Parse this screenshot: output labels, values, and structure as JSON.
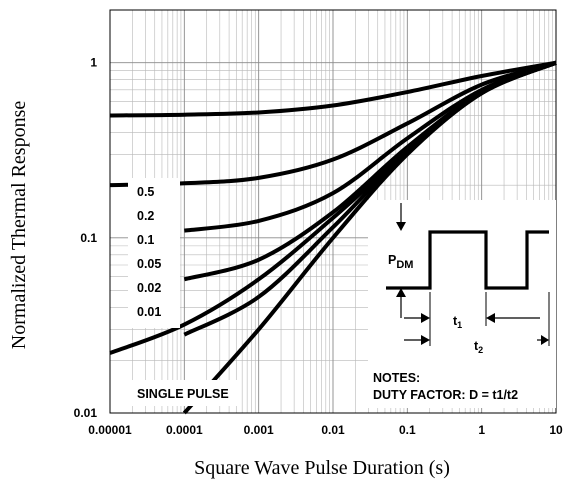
{
  "chart_data": {
    "type": "line",
    "title": "",
    "xlabel": "Square Wave Pulse Duration (s)",
    "ylabel": "Normalized Thermal Response",
    "xscale": "log",
    "yscale": "log",
    "xlim": [
      1e-05,
      10
    ],
    "ylim": [
      0.01,
      2
    ],
    "grid": true,
    "x_tick_labels": [
      "0.00001",
      "0.0001",
      "0.001",
      "0.01",
      "0.1",
      "1",
      "10"
    ],
    "x_tick_values": [
      1e-05,
      0.0001,
      0.001,
      0.01,
      0.1,
      1,
      10
    ],
    "y_tick_labels": [
      "0.01",
      "0.1",
      "1"
    ],
    "y_tick_values": [
      0.01,
      0.1,
      1
    ],
    "legend_labels": [
      "0.5",
      "0.2",
      "0.1",
      "0.05",
      "0.02",
      "0.01"
    ],
    "series": [
      {
        "name": "0.5",
        "x": [
          1e-05,
          0.0001,
          0.001,
          0.01,
          0.1,
          1,
          10
        ],
        "y": [
          0.5,
          0.505,
          0.52,
          0.57,
          0.68,
          0.84,
          1.0
        ]
      },
      {
        "name": "0.2",
        "x": [
          1e-05,
          0.0001,
          0.001,
          0.01,
          0.1,
          1,
          10
        ],
        "y": [
          0.2,
          0.205,
          0.22,
          0.28,
          0.45,
          0.75,
          1.0
        ]
      },
      {
        "name": "0.1",
        "x": [
          0.0001,
          0.001,
          0.01,
          0.1,
          1,
          10
        ],
        "y": [
          0.11,
          0.125,
          0.18,
          0.37,
          0.7,
          1.0
        ]
      },
      {
        "name": "0.05",
        "x": [
          0.0001,
          0.001,
          0.01,
          0.1,
          1,
          10
        ],
        "y": [
          0.058,
          0.075,
          0.14,
          0.33,
          0.68,
          1.0
        ]
      },
      {
        "name": "0.02",
        "x": [
          0.0001,
          0.001,
          0.01,
          0.1,
          1,
          10
        ],
        "y": [
          0.028,
          0.046,
          0.115,
          0.31,
          0.67,
          1.0
        ]
      },
      {
        "name": "0.01",
        "x": [
          1e-05,
          0.0001,
          0.001,
          0.01,
          0.1,
          1,
          10
        ],
        "y": [
          0.022,
          0.032,
          0.058,
          0.13,
          0.31,
          0.67,
          1.0
        ]
      },
      {
        "name": "SINGLE PULSE",
        "x": [
          0.0001,
          0.001,
          0.01,
          0.1,
          1,
          10
        ],
        "y": [
          0.01,
          0.03,
          0.1,
          0.3,
          0.67,
          1.0
        ]
      }
    ],
    "annotations": {
      "single_pulse_label": "SINGLE PULSE",
      "inset": {
        "pdm_main": "P",
        "pdm_sub": "DM",
        "t1_main": "t",
        "t1_sub": "1",
        "t2_main": "t",
        "t2_sub": "2",
        "notes_title": "NOTES:",
        "notes_text": "DUTY FACTOR: D = t1/t2"
      }
    }
  }
}
